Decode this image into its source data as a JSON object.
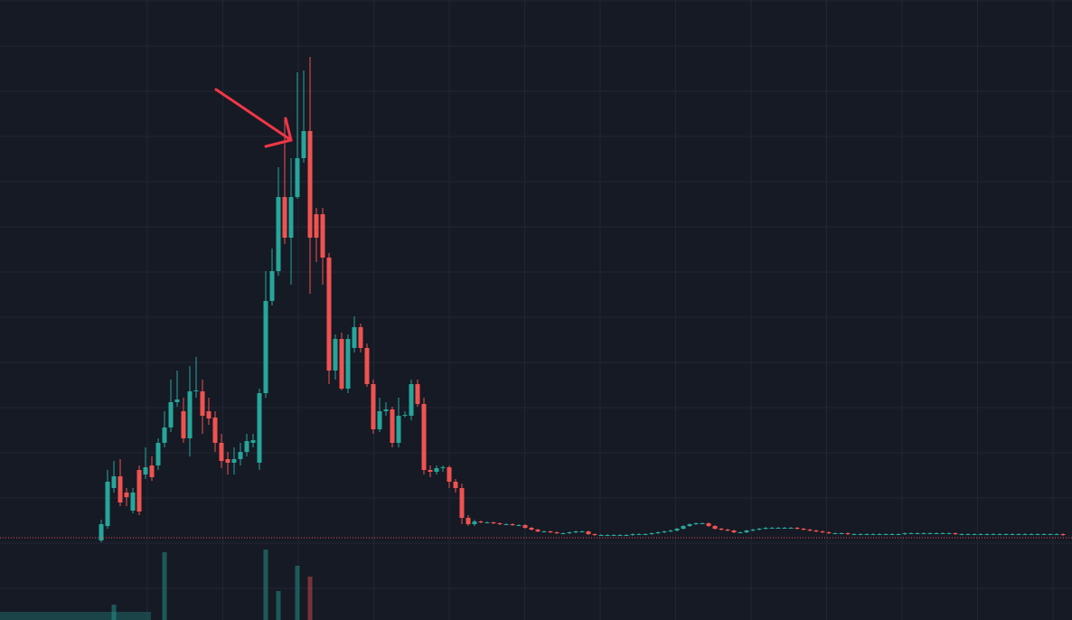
{
  "chart_data": {
    "type": "candlestick",
    "ylim": [
      -86,
      600
    ],
    "y2lim": [
      0,
      100
    ],
    "grid": true,
    "up_color": "#26a69a",
    "down_color": "#ef5350",
    "price_line": 5,
    "ohlc": [
      [
        2,
        25,
        0,
        20
      ],
      [
        18,
        80,
        15,
        67
      ],
      [
        60,
        90,
        55,
        73
      ],
      [
        73,
        92,
        40,
        44
      ],
      [
        55,
        60,
        40,
        50
      ],
      [
        35,
        60,
        32,
        55
      ],
      [
        80,
        85,
        30,
        34
      ],
      [
        75,
        105,
        70,
        83
      ],
      [
        85,
        95,
        68,
        72
      ],
      [
        85,
        115,
        80,
        110
      ],
      [
        110,
        145,
        105,
        127
      ],
      [
        127,
        180,
        122,
        155
      ],
      [
        155,
        190,
        150,
        158
      ],
      [
        145,
        160,
        110,
        115
      ],
      [
        115,
        195,
        95,
        167
      ],
      [
        167,
        205,
        160,
        168
      ],
      [
        167,
        180,
        120,
        140
      ],
      [
        145,
        160,
        130,
        137
      ],
      [
        138,
        145,
        100,
        110
      ],
      [
        110,
        120,
        82,
        90
      ],
      [
        92,
        100,
        75,
        88
      ],
      [
        88,
        105,
        75,
        92
      ],
      [
        92,
        110,
        85,
        100
      ],
      [
        100,
        120,
        95,
        112
      ],
      [
        110,
        120,
        105,
        113
      ],
      [
        88,
        170,
        80,
        165
      ],
      [
        165,
        300,
        160,
        267
      ],
      [
        267,
        325,
        262,
        300
      ],
      [
        300,
        415,
        295,
        382
      ],
      [
        382,
        470,
        330,
        337
      ],
      [
        337,
        425,
        285,
        382
      ],
      [
        382,
        520,
        380,
        425
      ],
      [
        425,
        522,
        420,
        455
      ],
      [
        455,
        537,
        275,
        337
      ],
      [
        363,
        370,
        310,
        337
      ],
      [
        363,
        370,
        285,
        315
      ],
      [
        315,
        320,
        175,
        190
      ],
      [
        190,
        230,
        180,
        225
      ],
      [
        225,
        232,
        168,
        170
      ],
      [
        170,
        230,
        165,
        225
      ],
      [
        215,
        250,
        210,
        238
      ],
      [
        238,
        242,
        210,
        215
      ],
      [
        215,
        220,
        172,
        175
      ],
      [
        175,
        180,
        120,
        125
      ],
      [
        125,
        160,
        122,
        145
      ],
      [
        145,
        155,
        140,
        147
      ],
      [
        147,
        150,
        105,
        110
      ],
      [
        110,
        160,
        105,
        140
      ],
      [
        140,
        145,
        138,
        141
      ],
      [
        140,
        180,
        135,
        175
      ],
      [
        175,
        180,
        150,
        153
      ],
      [
        153,
        160,
        75,
        80
      ],
      [
        80,
        85,
        72,
        78
      ],
      [
        78,
        85,
        75,
        82
      ],
      [
        82,
        85,
        78,
        83
      ],
      [
        83,
        85,
        60,
        67
      ],
      [
        67,
        70,
        55,
        60
      ],
      [
        60,
        65,
        20,
        27
      ],
      [
        27,
        30,
        18,
        20
      ],
      [
        20,
        25,
        18,
        23
      ],
      [
        23,
        24,
        21,
        22
      ],
      [
        22,
        23,
        21,
        22
      ],
      [
        22,
        23,
        20,
        21
      ],
      [
        21,
        22,
        19,
        20
      ],
      [
        20,
        21,
        19,
        20
      ],
      [
        20,
        21,
        18,
        19
      ],
      [
        19,
        20,
        18,
        19
      ],
      [
        19,
        20,
        15,
        16
      ],
      [
        16,
        17,
        13,
        14
      ],
      [
        14,
        15,
        11,
        12
      ],
      [
        12,
        13,
        11,
        12
      ],
      [
        12,
        13,
        10,
        11
      ],
      [
        11,
        12,
        9,
        10
      ],
      [
        10,
        11,
        9,
        10
      ],
      [
        10,
        12,
        9,
        11
      ],
      [
        11,
        13,
        10,
        12
      ],
      [
        12,
        13,
        11,
        12
      ],
      [
        12,
        13,
        8,
        9
      ],
      [
        9,
        10,
        7,
        8
      ],
      [
        8,
        9,
        7,
        8
      ],
      [
        8,
        9,
        7,
        8
      ],
      [
        8,
        9,
        7,
        8
      ],
      [
        8,
        9,
        7,
        8
      ],
      [
        8,
        9,
        7,
        8
      ],
      [
        8,
        10,
        7,
        9
      ],
      [
        9,
        10,
        8,
        9
      ],
      [
        9,
        10,
        8,
        9
      ],
      [
        9,
        11,
        8,
        10
      ],
      [
        10,
        12,
        9,
        11
      ],
      [
        11,
        13,
        10,
        12
      ],
      [
        12,
        14,
        11,
        13
      ],
      [
        13,
        16,
        12,
        15
      ],
      [
        15,
        19,
        14,
        18
      ],
      [
        18,
        21,
        17,
        20
      ],
      [
        20,
        22,
        19,
        21
      ],
      [
        21,
        22,
        20,
        21
      ],
      [
        21,
        22,
        17,
        18
      ],
      [
        18,
        19,
        14,
        15
      ],
      [
        15,
        16,
        13,
        14
      ],
      [
        14,
        15,
        12,
        13
      ],
      [
        13,
        14,
        10,
        11
      ],
      [
        11,
        12,
        10,
        11
      ],
      [
        11,
        14,
        10,
        13
      ],
      [
        13,
        15,
        12,
        14
      ],
      [
        14,
        16,
        13,
        15
      ],
      [
        15,
        17,
        14,
        16
      ],
      [
        16,
        17,
        15,
        16
      ],
      [
        16,
        17,
        15,
        16
      ],
      [
        16,
        17,
        15,
        16
      ],
      [
        16,
        17,
        15,
        16
      ],
      [
        16,
        17,
        14,
        15
      ],
      [
        15,
        16,
        13,
        14
      ],
      [
        14,
        15,
        12,
        13
      ],
      [
        13,
        14,
        11,
        12
      ],
      [
        12,
        13,
        10,
        11
      ],
      [
        11,
        12,
        9,
        10
      ],
      [
        10,
        11,
        9,
        10
      ],
      [
        10,
        11,
        9,
        10
      ],
      [
        10,
        11,
        8,
        9
      ],
      [
        9,
        10,
        8,
        9
      ],
      [
        9,
        10,
        8,
        9
      ],
      [
        9,
        10,
        8,
        9
      ],
      [
        9,
        10,
        8,
        9
      ],
      [
        9,
        10,
        8,
        9
      ],
      [
        9,
        10,
        8,
        9
      ],
      [
        9,
        10,
        8,
        9
      ],
      [
        9,
        10,
        8,
        9
      ],
      [
        9,
        11,
        8,
        10
      ],
      [
        10,
        11,
        9,
        10
      ],
      [
        10,
        11,
        9,
        10
      ],
      [
        10,
        11,
        9,
        10
      ],
      [
        10,
        11,
        9,
        10
      ],
      [
        10,
        11,
        9,
        10
      ],
      [
        10,
        11,
        9,
        10
      ],
      [
        10,
        11,
        9,
        10
      ],
      [
        10,
        11,
        8,
        9
      ],
      [
        9,
        10,
        8,
        9
      ],
      [
        9,
        10,
        8,
        9
      ],
      [
        9,
        10,
        8,
        9
      ],
      [
        9,
        10,
        8,
        9
      ],
      [
        9,
        10,
        8,
        9
      ],
      [
        9,
        10,
        8,
        9
      ],
      [
        9,
        10,
        8,
        9
      ],
      [
        9,
        10,
        8,
        9
      ],
      [
        9,
        10,
        8,
        9
      ],
      [
        9,
        10,
        8,
        9
      ],
      [
        9,
        10,
        8,
        9
      ],
      [
        9,
        10,
        8,
        9
      ],
      [
        9,
        10,
        8,
        9
      ],
      [
        9,
        10,
        8,
        9
      ],
      [
        9,
        10,
        8,
        9
      ],
      [
        9,
        10,
        8,
        9
      ],
      [
        9,
        10,
        7,
        8
      ]
    ],
    "volume_bars": [
      {
        "index": 2,
        "value": 17
      },
      {
        "index": 10,
        "value": 75
      },
      {
        "index": 26,
        "value": 78
      },
      {
        "index": 28,
        "value": 32
      },
      {
        "index": 31,
        "value": 60
      },
      {
        "index": 33,
        "value": 48
      }
    ]
  }
}
